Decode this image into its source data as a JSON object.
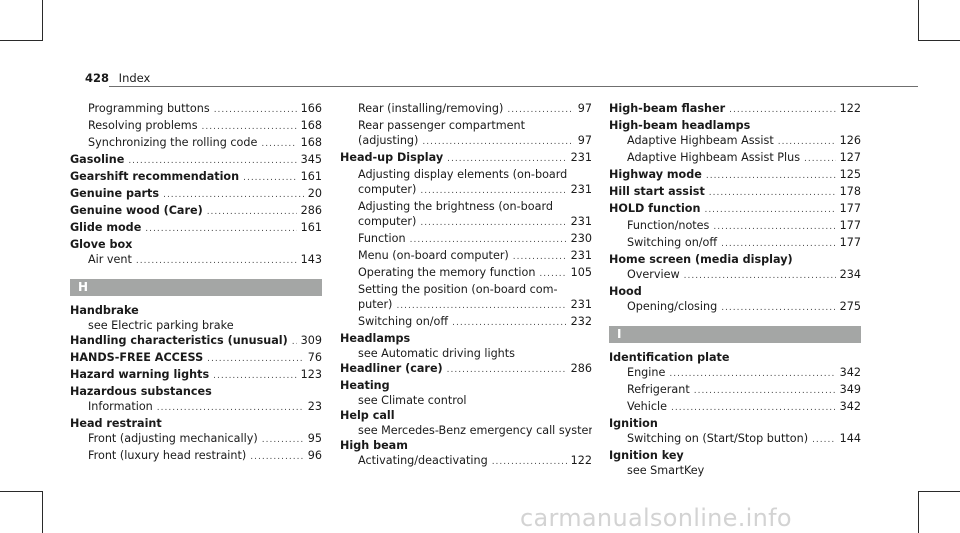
{
  "header": {
    "page_number": "428",
    "section": "Index"
  },
  "watermark": "carmanualsonline.info",
  "colors": {
    "letter_bar": "#a4a6a5",
    "text": "#1a1a1a"
  },
  "columns": [
    [
      {
        "type": "entry",
        "lines": [
          {
            "kind": "sub",
            "text": "Programming buttons",
            "page": "166"
          },
          {
            "kind": "sub",
            "text": "Resolving problems",
            "page": "168"
          },
          {
            "kind": "sub",
            "text": "Synchronizing the rolling code",
            "page": "168"
          }
        ]
      },
      {
        "type": "entry",
        "lines": [
          {
            "kind": "main",
            "text": "Gasoline",
            "page": "345"
          }
        ]
      },
      {
        "type": "entry",
        "lines": [
          {
            "kind": "main",
            "text": "Gearshift recommendation",
            "page": "161"
          }
        ]
      },
      {
        "type": "entry",
        "lines": [
          {
            "kind": "main",
            "text": "Genuine parts",
            "page": "20"
          }
        ]
      },
      {
        "type": "entry",
        "lines": [
          {
            "kind": "main",
            "text": "Genuine wood (Care)",
            "page": "286"
          }
        ]
      },
      {
        "type": "entry",
        "lines": [
          {
            "kind": "main",
            "text": "Glide mode",
            "page": "161"
          }
        ]
      },
      {
        "type": "entry",
        "lines": [
          {
            "kind": "main",
            "text": "Glove box",
            "page": ""
          },
          {
            "kind": "sub",
            "text": "Air vent",
            "page": "143"
          }
        ]
      },
      {
        "type": "letter",
        "text": "H"
      },
      {
        "type": "entry",
        "lines": [
          {
            "kind": "main",
            "text": "Handbrake",
            "page": ""
          },
          {
            "kind": "sub",
            "text": "see Electric parking brake",
            "page": ""
          }
        ]
      },
      {
        "type": "entry",
        "lines": [
          {
            "kind": "main",
            "text": "Handling characteristics (unusual)",
            "page": "309"
          }
        ]
      },
      {
        "type": "entry",
        "lines": [
          {
            "kind": "main",
            "text": "HANDS-FREE ACCESS",
            "page": "76"
          }
        ]
      },
      {
        "type": "entry",
        "lines": [
          {
            "kind": "main",
            "text": "Hazard warning lights",
            "page": "123"
          }
        ]
      },
      {
        "type": "entry",
        "lines": [
          {
            "kind": "main",
            "text": "Hazardous substances",
            "page": ""
          },
          {
            "kind": "sub",
            "text": "Information",
            "page": "23"
          }
        ]
      },
      {
        "type": "entry",
        "lines": [
          {
            "kind": "main",
            "text": "Head restraint",
            "page": ""
          },
          {
            "kind": "sub",
            "text": "Front (adjusting mechanically)",
            "page": "95"
          },
          {
            "kind": "sub",
            "text": "Front (luxury head restraint)",
            "page": "96"
          }
        ]
      }
    ],
    [
      {
        "type": "entry",
        "lines": [
          {
            "kind": "sub",
            "text": "Rear (installing/removing)",
            "page": "97"
          },
          {
            "kind": "sub",
            "text": "Rear passenger compartment",
            "page": ""
          },
          {
            "kind": "sub",
            "text": "(adjusting)",
            "page": "97"
          }
        ]
      },
      {
        "type": "entry",
        "lines": [
          {
            "kind": "main",
            "text": "Head-up Display",
            "page": "231"
          },
          {
            "kind": "sub",
            "text": "Adjusting display elements (on-board",
            "page": ""
          },
          {
            "kind": "sub",
            "text": "computer)",
            "page": "231"
          },
          {
            "kind": "sub",
            "text": "Adjusting the brightness (on-board",
            "page": ""
          },
          {
            "kind": "sub",
            "text": "computer)",
            "page": "231"
          },
          {
            "kind": "sub",
            "text": "Function",
            "page": "230"
          },
          {
            "kind": "sub",
            "text": "Menu (on-board computer)",
            "page": "231"
          },
          {
            "kind": "sub",
            "text": "Operating the memory function",
            "page": "105"
          },
          {
            "kind": "sub",
            "text": "Setting the position (on-board com-",
            "page": ""
          },
          {
            "kind": "sub",
            "text": "puter)",
            "page": "231"
          },
          {
            "kind": "sub",
            "text": "Switching on/off",
            "page": "232"
          }
        ]
      },
      {
        "type": "entry",
        "lines": [
          {
            "kind": "main",
            "text": "Headlamps",
            "page": ""
          },
          {
            "kind": "sub",
            "text": "see Automatic driving lights",
            "page": ""
          }
        ]
      },
      {
        "type": "entry",
        "lines": [
          {
            "kind": "main",
            "text": "Headliner (care)",
            "page": "286"
          }
        ]
      },
      {
        "type": "entry",
        "lines": [
          {
            "kind": "main",
            "text": "Heating",
            "page": ""
          },
          {
            "kind": "sub",
            "text": "see Climate control",
            "page": ""
          }
        ]
      },
      {
        "type": "entry",
        "lines": [
          {
            "kind": "main",
            "text": "Help call",
            "page": ""
          },
          {
            "kind": "sub",
            "text": "see Mercedes-Benz emergency call system",
            "page": ""
          }
        ]
      },
      {
        "type": "entry",
        "lines": [
          {
            "kind": "main",
            "text": "High beam",
            "page": ""
          },
          {
            "kind": "sub",
            "text": "Activating/deactivating",
            "page": "122"
          }
        ]
      }
    ],
    [
      {
        "type": "entry",
        "lines": [
          {
            "kind": "main",
            "text": "High-beam flasher",
            "page": "122"
          }
        ]
      },
      {
        "type": "entry",
        "lines": [
          {
            "kind": "main",
            "text": "High-beam headlamps",
            "page": ""
          },
          {
            "kind": "sub",
            "text": "Adaptive Highbeam Assist",
            "page": "126"
          },
          {
            "kind": "sub",
            "text": "Adaptive Highbeam Assist Plus",
            "page": "127"
          }
        ]
      },
      {
        "type": "entry",
        "lines": [
          {
            "kind": "main",
            "text": "Highway mode",
            "page": "125"
          }
        ]
      },
      {
        "type": "entry",
        "lines": [
          {
            "kind": "main",
            "text": "Hill start assist",
            "page": "178"
          }
        ]
      },
      {
        "type": "entry",
        "lines": [
          {
            "kind": "main",
            "text": "HOLD function",
            "page": "177"
          },
          {
            "kind": "sub",
            "text": "Function/notes",
            "page": "177"
          },
          {
            "kind": "sub",
            "text": "Switching on/off",
            "page": "177"
          }
        ]
      },
      {
        "type": "entry",
        "lines": [
          {
            "kind": "main",
            "text": "Home screen (media display)",
            "page": ""
          },
          {
            "kind": "sub",
            "text": "Overview",
            "page": "234"
          }
        ]
      },
      {
        "type": "entry",
        "lines": [
          {
            "kind": "main",
            "text": "Hood",
            "page": ""
          },
          {
            "kind": "sub",
            "text": "Opening/closing",
            "page": "275"
          }
        ]
      },
      {
        "type": "letter",
        "text": "I"
      },
      {
        "type": "entry",
        "lines": [
          {
            "kind": "main",
            "text": "Identification plate",
            "page": ""
          },
          {
            "kind": "sub",
            "text": "Engine",
            "page": "342"
          },
          {
            "kind": "sub",
            "text": "Refrigerant",
            "page": "349"
          },
          {
            "kind": "sub",
            "text": "Vehicle",
            "page": "342"
          }
        ]
      },
      {
        "type": "entry",
        "lines": [
          {
            "kind": "main",
            "text": "Ignition",
            "page": ""
          },
          {
            "kind": "sub",
            "text": "Switching on (Start/Stop button)",
            "page": "144"
          }
        ]
      },
      {
        "type": "entry",
        "lines": [
          {
            "kind": "main",
            "text": "Ignition key",
            "page": ""
          },
          {
            "kind": "sub",
            "text": "see SmartKey",
            "page": ""
          }
        ]
      }
    ]
  ]
}
